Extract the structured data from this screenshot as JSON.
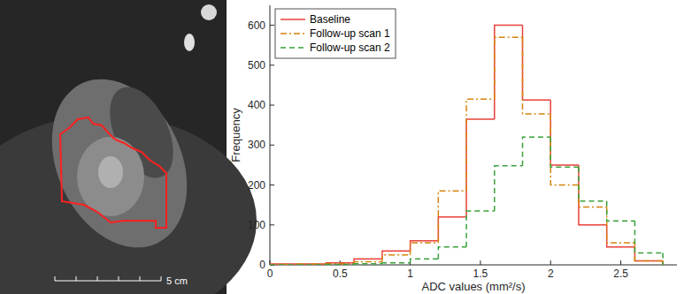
{
  "image": {
    "scale_label": "5 cm"
  },
  "chart_data": {
    "type": "histogram",
    "x_label": "ADC values (mm²/s)",
    "y_label": "Frequency",
    "bins": [
      0,
      0.2,
      0.4,
      0.6,
      0.8,
      1.0,
      1.2,
      1.4,
      1.6,
      1.8,
      2.0,
      2.2,
      2.4,
      2.6,
      2.8
    ],
    "series": [
      {
        "name": "Baseline",
        "color": "#e8403a",
        "line_style": "solid",
        "values": [
          2,
          2,
          5,
          15,
          35,
          60,
          120,
          365,
          600,
          413,
          250,
          100,
          45,
          10
        ]
      },
      {
        "name": "Follow-up scan 1",
        "color": "#d4840c",
        "line_style": "dashdot",
        "values": [
          1,
          2,
          3,
          8,
          25,
          55,
          185,
          415,
          570,
          378,
          200,
          145,
          55,
          10
        ]
      },
      {
        "name": "Follow-up scan 2",
        "color": "#3aa23a",
        "line_style": "dashed",
        "values": [
          0,
          0,
          1,
          3,
          5,
          15,
          45,
          135,
          248,
          320,
          245,
          160,
          110,
          30
        ]
      }
    ],
    "xlim": [
      0,
      2.9
    ],
    "ylim": [
      0,
      650
    ],
    "xticks": [
      0,
      0.5,
      1,
      1.5,
      2,
      2.5
    ],
    "yticks": [
      0,
      100,
      200,
      300,
      400,
      500,
      600
    ],
    "legend": "upper left",
    "grid": false
  }
}
